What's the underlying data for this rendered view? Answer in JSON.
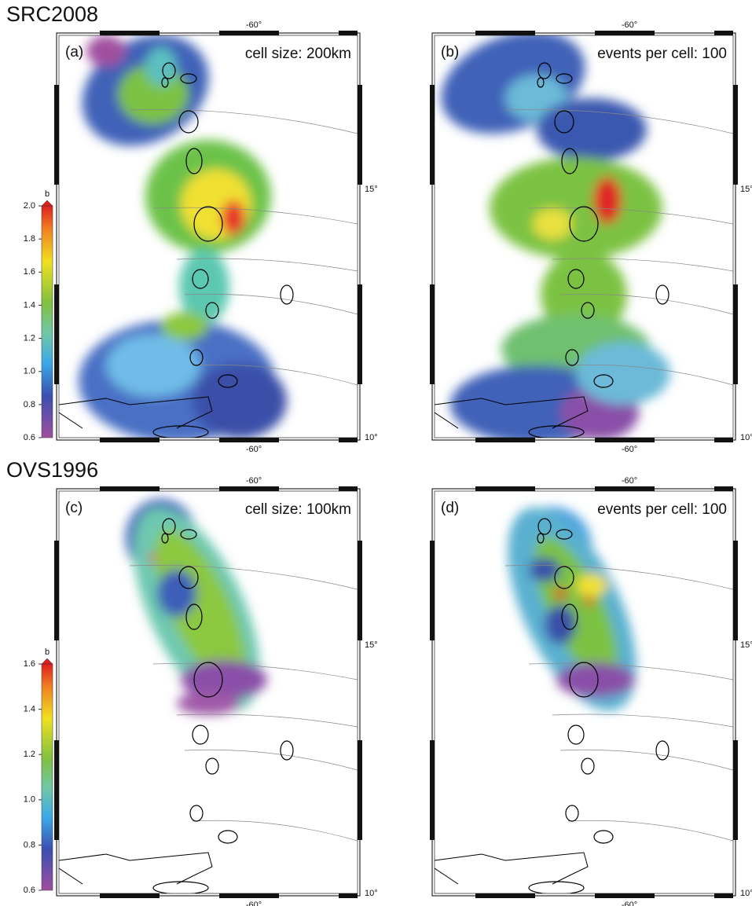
{
  "sections": [
    {
      "title": "SRC2008",
      "colorbar": {
        "title": "b",
        "lim": [
          0.6,
          2.0
        ],
        "ticks": [
          0.6,
          0.8,
          {
            "value": 1.0,
            "label": "1.0"
          },
          1.2,
          1.4,
          1.6,
          1.8,
          {
            "value": 2.0,
            "label": "2.0"
          }
        ]
      },
      "panels": [
        {
          "label": "(a)",
          "note": "cell size: 200km",
          "lon_label": "-60°",
          "lat_labels": [
            "15°",
            "10°"
          ]
        },
        {
          "label": "(b)",
          "note": "events per cell: 100",
          "lon_label": "-60°",
          "lat_labels": [
            "15°",
            "10°"
          ]
        }
      ]
    },
    {
      "title": "OVS1996",
      "colorbar": {
        "title": "b",
        "lim": [
          0.6,
          1.6
        ],
        "ticks": [
          0.6,
          0.8,
          {
            "value": 1.0,
            "label": "1.0"
          },
          1.2,
          1.4,
          1.6
        ]
      },
      "panels": [
        {
          "label": "(c)",
          "note": "cell size: 100km",
          "lon_label": "-60°",
          "lat_labels": [
            "15°",
            "10°"
          ]
        },
        {
          "label": "(d)",
          "note": "events per cell: 100",
          "lon_label": "-60°",
          "lat_labels": [
            "15°",
            "10°"
          ]
        }
      ]
    }
  ]
}
